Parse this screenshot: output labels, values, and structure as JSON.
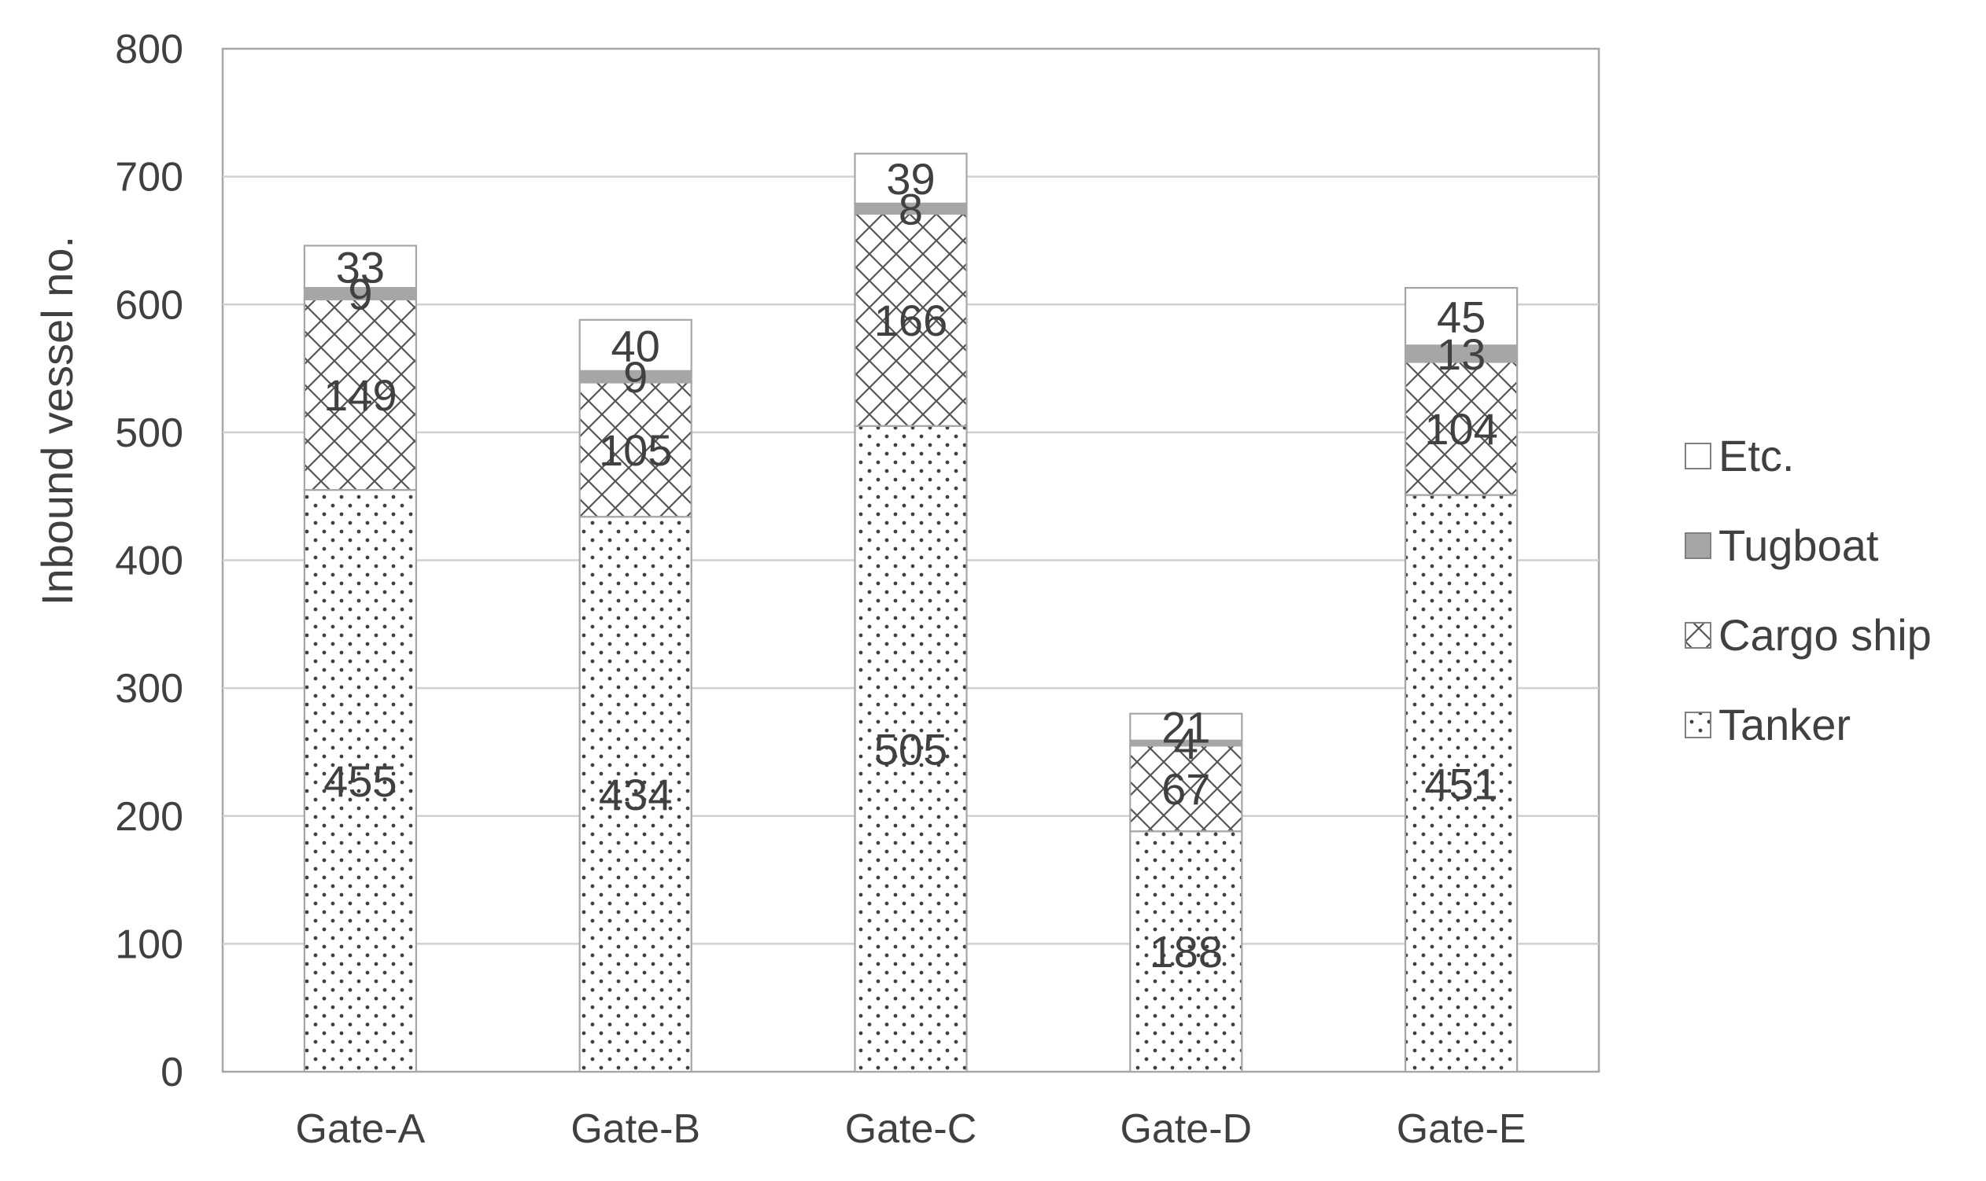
{
  "chart_data": {
    "type": "bar",
    "stacked": true,
    "title": "",
    "xlabel": "",
    "ylabel": "Inbound vessel no.",
    "ylim": [
      0,
      800
    ],
    "yticks": [
      0,
      100,
      200,
      300,
      400,
      500,
      600,
      700,
      800
    ],
    "grid": true,
    "legend_position": "right",
    "categories": [
      "Gate-A",
      "Gate-B",
      "Gate-C",
      "Gate-D",
      "Gate-E"
    ],
    "series": [
      {
        "name": "Tanker",
        "pattern": "dots",
        "values": [
          455,
          434,
          505,
          188,
          451
        ]
      },
      {
        "name": "Cargo ship",
        "pattern": "crosshatch",
        "values": [
          149,
          105,
          166,
          67,
          104
        ]
      },
      {
        "name": "Tugboat",
        "pattern": "solid",
        "color": "#a6a6a6",
        "values": [
          9,
          9,
          8,
          4,
          13
        ]
      },
      {
        "name": "Etc.",
        "pattern": "none",
        "values": [
          33,
          40,
          39,
          21,
          45
        ]
      }
    ]
  }
}
